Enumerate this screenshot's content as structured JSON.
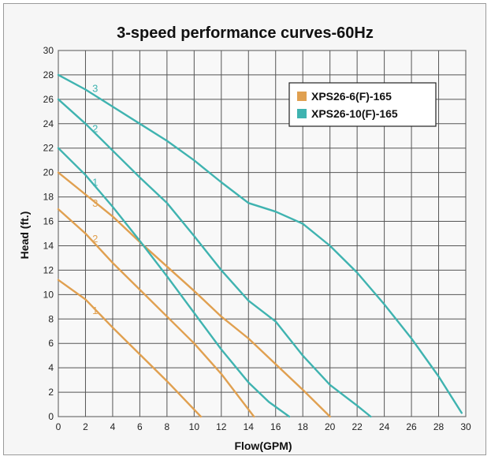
{
  "chart_data": {
    "type": "line",
    "title": "3-speed performance curves-60Hz",
    "xlabel": "Flow(GPM)",
    "ylabel": "Head (ft.)",
    "xlim": [
      0,
      30
    ],
    "ylim": [
      0,
      30
    ],
    "xticks": [
      "0",
      "2",
      "4",
      "6",
      "8",
      "10",
      "12",
      "14",
      "16",
      "18",
      "20",
      "22",
      "24",
      "26",
      "28",
      "30"
    ],
    "yticks": [
      "0",
      "2",
      "4",
      "6",
      "8",
      "10",
      "12",
      "14",
      "16",
      "18",
      "20",
      "22",
      "24",
      "26",
      "28",
      "30"
    ],
    "grid": true,
    "legend_position": "top-right",
    "colors": {
      "XPS26-6(F)-165": "#e0a050",
      "XPS26-10(F)-165": "#3fb3b0"
    },
    "series": [
      {
        "name": "XPS26-6(F)-165",
        "speed": "1",
        "x": [
          0,
          2,
          4,
          6,
          8,
          10.5
        ],
        "y": [
          11.2,
          9.6,
          7.3,
          5.1,
          2.9,
          0
        ]
      },
      {
        "name": "XPS26-6(F)-165",
        "speed": "2",
        "x": [
          0,
          2,
          4,
          6,
          8,
          10,
          12,
          14.4
        ],
        "y": [
          17,
          15,
          12.6,
          10.4,
          8.2,
          6,
          3.5,
          0
        ]
      },
      {
        "name": "XPS26-6(F)-165",
        "speed": "3",
        "x": [
          0,
          2,
          4,
          6,
          8,
          10,
          12,
          14,
          16,
          18,
          20
        ],
        "y": [
          20,
          18.2,
          16.4,
          14.3,
          12.3,
          10.3,
          8.2,
          6.4,
          4.3,
          2.2,
          0
        ]
      },
      {
        "name": "XPS26-10(F)-165",
        "speed": "1",
        "x": [
          0,
          2,
          4,
          6,
          8,
          10,
          12,
          14,
          15.5,
          17
        ],
        "y": [
          22,
          19.8,
          17.2,
          14.4,
          11.5,
          8.5,
          5.5,
          2.8,
          1.2,
          0
        ]
      },
      {
        "name": "XPS26-10(F)-165",
        "speed": "2",
        "x": [
          0,
          2,
          4,
          6,
          8,
          10,
          12,
          14,
          16,
          18,
          20,
          22,
          23
        ],
        "y": [
          26,
          24,
          21.8,
          19.6,
          17.5,
          14.8,
          12,
          9.5,
          7.8,
          5,
          2.6,
          0.9,
          0
        ]
      },
      {
        "name": "XPS26-10(F)-165",
        "speed": "3",
        "x": [
          0,
          2,
          4,
          6,
          8,
          10,
          12,
          14,
          16,
          18,
          20,
          22,
          24,
          26,
          28,
          29.7
        ],
        "y": [
          28,
          26.8,
          25.4,
          24,
          22.6,
          21,
          19.2,
          17.5,
          16.8,
          15.8,
          14,
          11.8,
          9.2,
          6.4,
          3.3,
          0.3
        ]
      }
    ],
    "curve_labels": [
      {
        "text": "1",
        "series_index": 0,
        "x": 2.5,
        "y": 8.4
      },
      {
        "text": "2",
        "series_index": 1,
        "x": 2.5,
        "y": 14.3
      },
      {
        "text": "3",
        "series_index": 2,
        "x": 2.5,
        "y": 17.2
      },
      {
        "text": "1",
        "series_index": 3,
        "x": 2.5,
        "y": 18.9
      },
      {
        "text": "2",
        "series_index": 4,
        "x": 2.5,
        "y": 23.3
      },
      {
        "text": "3",
        "series_index": 5,
        "x": 2.5,
        "y": 26.6
      }
    ],
    "legend": [
      "XPS26-6(F)-165",
      "XPS26-10(F)-165"
    ]
  }
}
